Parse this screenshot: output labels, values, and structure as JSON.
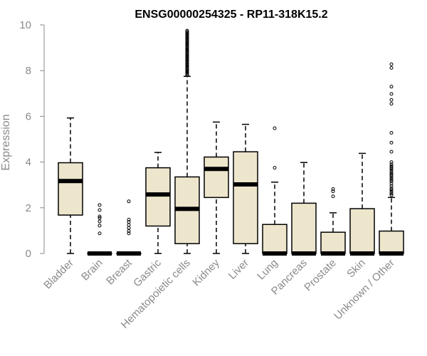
{
  "chart_data": {
    "type": "box",
    "title": "ENSG00000254325 - RP11-318K15.2",
    "ylabel": "Expression",
    "xlabel": "",
    "ylim": [
      0,
      10
    ],
    "yticks": [
      0,
      2,
      4,
      6,
      8,
      10
    ],
    "colors": {
      "box_fill": "#ede6cd",
      "axis": "#8a8a8a",
      "stroke": "#000000"
    },
    "categories": [
      "Bladder",
      "Brain",
      "Breast",
      "Gastric",
      "Hematopoietic cells",
      "Kidney",
      "Liver",
      "Lung",
      "Pancreas",
      "Prostate",
      "Skin",
      "Unknown / Other"
    ],
    "boxes": [
      {
        "min": 0.0,
        "q1": 1.68,
        "median": 3.17,
        "q3": 3.97,
        "max": 5.93,
        "outliers": []
      },
      {
        "min": 0.0,
        "q1": 0.0,
        "median": 0.0,
        "q3": 0.0,
        "max": 0.0,
        "outliers": [
          0.88,
          1.22,
          1.4,
          1.55,
          1.62,
          1.9,
          2.12
        ]
      },
      {
        "min": 0.0,
        "q1": 0.0,
        "median": 0.0,
        "q3": 0.0,
        "max": 0.0,
        "outliers": [
          0.88,
          0.98,
          1.12,
          1.25,
          1.38,
          1.48,
          2.28
        ]
      },
      {
        "min": 0.0,
        "q1": 1.2,
        "median": 2.58,
        "q3": 3.75,
        "max": 4.42,
        "outliers": []
      },
      {
        "min": 0.0,
        "q1": 0.43,
        "median": 1.95,
        "q3": 3.35,
        "max": 7.75,
        "outliers": [
          7.8,
          7.85,
          7.9,
          7.95,
          8.0,
          8.05,
          8.1,
          8.15,
          8.2,
          8.25,
          8.3,
          8.35,
          8.4,
          8.45,
          8.5,
          8.55,
          8.6,
          8.65,
          8.7,
          8.75,
          8.8,
          8.85,
          8.9,
          8.95,
          9.0,
          9.05,
          9.1,
          9.15,
          9.2,
          9.25,
          9.3,
          9.35,
          9.4,
          9.45,
          9.5,
          9.55,
          9.6,
          9.65,
          9.7,
          9.75
        ]
      },
      {
        "min": 0.0,
        "q1": 2.45,
        "median": 3.7,
        "q3": 4.22,
        "max": 5.75,
        "outliers": []
      },
      {
        "min": 0.0,
        "q1": 0.43,
        "median": 3.02,
        "q3": 4.45,
        "max": 5.65,
        "outliers": []
      },
      {
        "min": 0.0,
        "q1": 0.0,
        "median": 0.0,
        "q3": 1.27,
        "max": 3.12,
        "outliers": [
          3.75,
          5.48
        ]
      },
      {
        "min": 0.0,
        "q1": 0.0,
        "median": 0.0,
        "q3": 2.2,
        "max": 3.98,
        "outliers": []
      },
      {
        "min": 0.0,
        "q1": 0.0,
        "median": 0.0,
        "q3": 0.93,
        "max": 1.78,
        "outliers": [
          2.5,
          2.72,
          2.82
        ]
      },
      {
        "min": 0.0,
        "q1": 0.0,
        "median": 0.0,
        "q3": 1.96,
        "max": 4.38,
        "outliers": []
      },
      {
        "min": 0.0,
        "q1": 0.0,
        "median": 0.0,
        "q3": 0.98,
        "max": 2.45,
        "outliers": [
          2.55,
          2.62,
          2.7,
          2.78,
          2.85,
          2.95,
          3.05,
          3.15,
          3.22,
          3.3,
          3.38,
          3.45,
          3.52,
          3.6,
          3.68,
          3.75,
          3.82,
          3.9,
          4.0,
          4.45,
          4.85,
          5.28,
          6.55,
          6.72,
          6.98,
          7.3,
          8.12,
          8.28
        ]
      }
    ]
  }
}
